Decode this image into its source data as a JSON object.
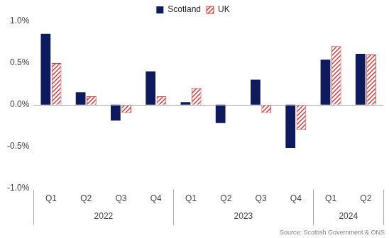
{
  "chart_data": {
    "type": "bar",
    "categories": [
      "Q1",
      "Q2",
      "Q3",
      "Q4",
      "Q1",
      "Q2",
      "Q3",
      "Q4",
      "Q1",
      "Q2"
    ],
    "category_groups": [
      "2022",
      "2022",
      "2022",
      "2022",
      "2023",
      "2023",
      "2023",
      "2023",
      "2024",
      "2024"
    ],
    "series": [
      {
        "name": "Scotland",
        "color": "#0e1a5e",
        "values": [
          0.85,
          0.15,
          -0.19,
          0.4,
          0.03,
          -0.22,
          0.3,
          -0.52,
          0.54,
          0.61
        ]
      },
      {
        "name": "UK",
        "color": "#d9383a",
        "values": [
          0.5,
          0.1,
          -0.1,
          0.1,
          0.2,
          0.0,
          -0.1,
          -0.3,
          0.7,
          0.6
        ]
      }
    ],
    "ylim": [
      -1.0,
      1.0
    ],
    "yticks": [
      {
        "value": -1.0,
        "label": "-1.0%"
      },
      {
        "value": -0.5,
        "label": "-0.5%"
      },
      {
        "value": 0.0,
        "label": "0.0%"
      },
      {
        "value": 0.5,
        "label": "0.5%"
      },
      {
        "value": 1.0,
        "label": "1.0%"
      }
    ],
    "grid": false,
    "legend": "top",
    "source": "Source: Scottish Government & ONS"
  }
}
